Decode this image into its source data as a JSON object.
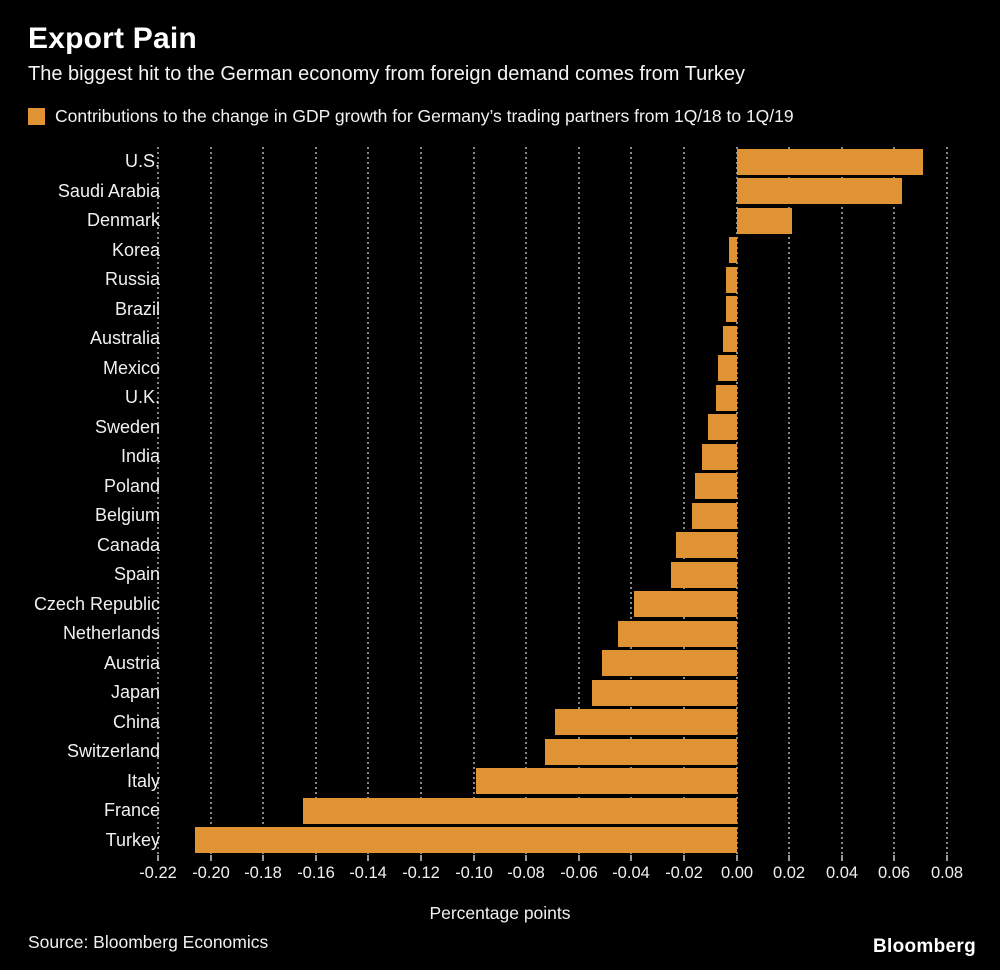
{
  "header": {
    "title": "Export Pain",
    "subtitle": "The biggest hit to the German economy from foreign demand comes from Turkey"
  },
  "legend": {
    "label": "Contributions to the change in GDP growth for Germany’s trading partners from 1Q/18 to 1Q/19"
  },
  "chart_data": {
    "type": "bar",
    "orientation": "horizontal",
    "title": "Export Pain",
    "categories": [
      "U.S.",
      "Saudi Arabia",
      "Denmark",
      "Korea",
      "Russia",
      "Brazil",
      "Australia",
      "Mexico",
      "U.K.",
      "Sweden",
      "India",
      "Poland",
      "Belgium",
      "Canada",
      "Spain",
      "Czech Republic",
      "Netherlands",
      "Austria",
      "Japan",
      "China",
      "Switzerland",
      "Italy",
      "France",
      "Turkey"
    ],
    "values": [
      0.071,
      0.063,
      0.021,
      -0.003,
      -0.004,
      -0.004,
      -0.005,
      -0.007,
      -0.008,
      -0.011,
      -0.013,
      -0.016,
      -0.017,
      -0.023,
      -0.025,
      -0.039,
      -0.045,
      -0.051,
      -0.055,
      -0.069,
      -0.073,
      -0.099,
      -0.165,
      -0.206
    ],
    "xlabel": "Percentage points",
    "xlim": [
      -0.22,
      0.08
    ],
    "xticks": [
      -0.22,
      -0.2,
      -0.18,
      -0.16,
      -0.14,
      -0.12,
      -0.1,
      -0.08,
      -0.06,
      -0.04,
      -0.02,
      0.0,
      0.02,
      0.04,
      0.06,
      0.08
    ],
    "grid": "dotted-vertical",
    "legend_position": "top-left"
  },
  "footer": {
    "source": "Source: Bloomberg Economics",
    "logo": "Bloomberg"
  },
  "colors": {
    "background": "#000000",
    "bar": "#E09335",
    "gridline": "#888888",
    "text": "#FFFFFF"
  }
}
